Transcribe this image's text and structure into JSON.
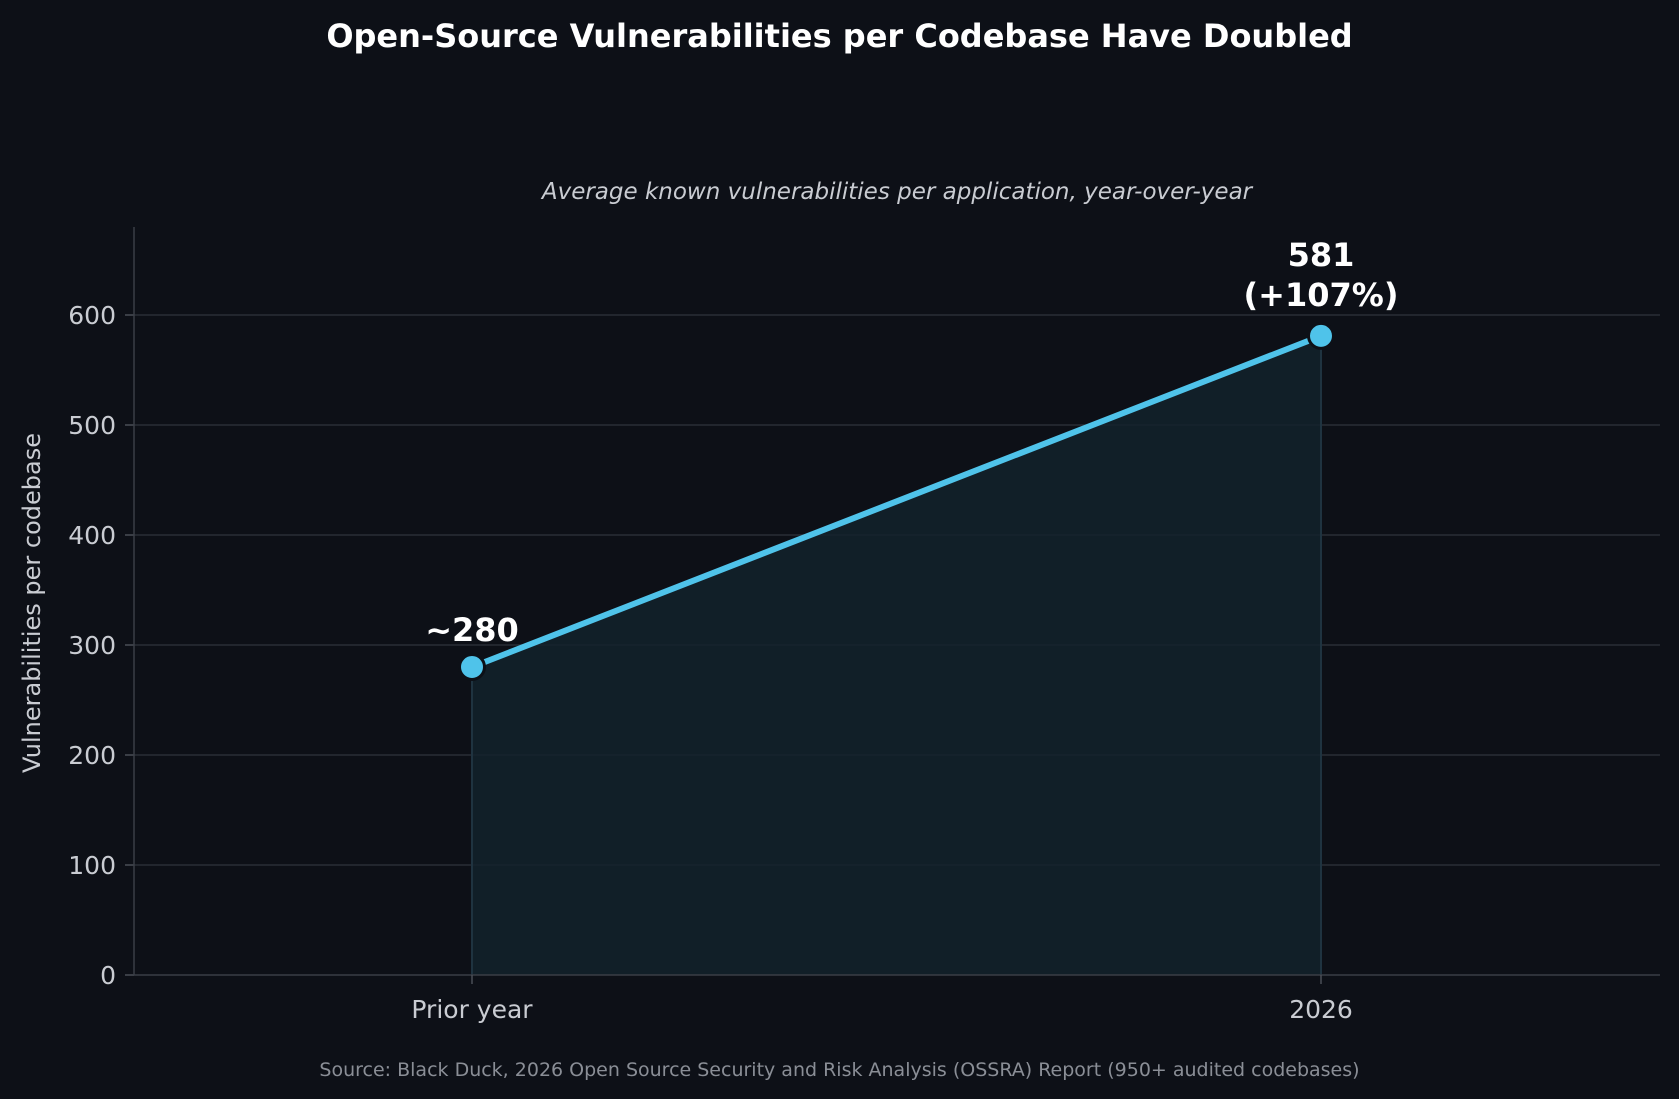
{
  "chart_data": {
    "type": "line",
    "title": "Open-Source Vulnerabilities per Codebase Have Doubled",
    "subtitle": "Average known vulnerabilities per application, year-over-year",
    "xlabel": "",
    "ylabel": "Vulnerabilities per codebase",
    "categories": [
      "Prior year",
      "2026"
    ],
    "series": [
      {
        "values": [
          280,
          581
        ]
      }
    ],
    "data_labels": [
      "~280",
      "581",
      "(+107%)"
    ],
    "ylim": [
      0,
      680
    ],
    "yticks": [
      "0",
      "100",
      "200",
      "300",
      "400",
      "500",
      "600"
    ],
    "grid": "horizontal",
    "area_fill": true,
    "source": "Source: Black Duck, 2026 Open Source Security and Risk Analysis (OSSRA) Report (950+ audited codebases)",
    "colors": {
      "background": "#0d1017",
      "line": "#4fc3ea",
      "grid": "#2a2e36",
      "text": "#c9ccd2",
      "title": "#ffffff",
      "source": "#8a8e96"
    }
  }
}
